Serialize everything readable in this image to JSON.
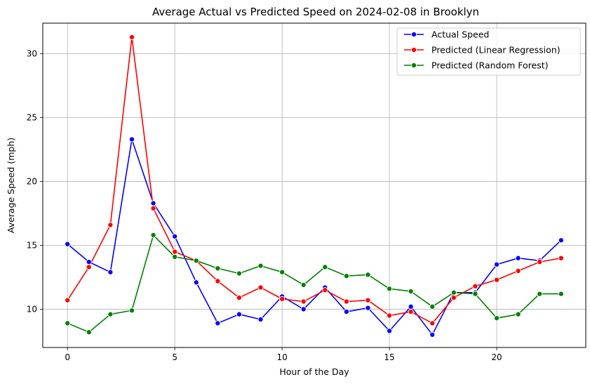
{
  "chart_data": {
    "type": "line",
    "title": "Average Actual vs Predicted Speed on 2024-02-08 in Brooklyn",
    "xlabel": "Hour of the Day",
    "ylabel": "Average Speed (mph)",
    "xlim": [
      -1.15,
      24.15
    ],
    "ylim": [
      7.0,
      32.4
    ],
    "xticks": [
      0,
      5,
      10,
      15,
      20
    ],
    "yticks": [
      10,
      15,
      20,
      25,
      30
    ],
    "grid": true,
    "legend_position": "upper right",
    "x": [
      0,
      1,
      2,
      3,
      4,
      5,
      6,
      7,
      8,
      9,
      10,
      11,
      12,
      13,
      14,
      15,
      16,
      17,
      18,
      19,
      20,
      21,
      22,
      23
    ],
    "series": [
      {
        "name": "Actual Speed",
        "color": "#0000ff",
        "values": [
          15.1,
          13.7,
          12.9,
          23.3,
          18.3,
          15.7,
          12.1,
          8.9,
          9.6,
          9.2,
          11.0,
          10.0,
          11.7,
          9.8,
          10.1,
          8.3,
          10.2,
          8.0,
          11.3,
          11.3,
          13.5,
          14.0,
          13.8,
          15.4
        ]
      },
      {
        "name": "Predicted (Linear Regression)",
        "color": "#ff0000",
        "values": [
          10.7,
          13.3,
          16.6,
          31.3,
          17.9,
          14.5,
          13.8,
          12.2,
          10.9,
          11.7,
          10.8,
          10.6,
          11.5,
          10.6,
          10.7,
          9.5,
          9.8,
          8.9,
          10.9,
          11.8,
          12.3,
          13.0,
          13.7,
          14.0
        ]
      },
      {
        "name": "Predicted (Random Forest)",
        "color": "#008000",
        "values": [
          8.9,
          8.2,
          9.6,
          9.9,
          15.8,
          14.1,
          13.8,
          13.2,
          12.8,
          13.4,
          12.9,
          11.9,
          13.3,
          12.6,
          12.7,
          11.6,
          11.4,
          10.2,
          11.3,
          11.2,
          9.3,
          9.6,
          11.2,
          11.2
        ]
      }
    ]
  }
}
